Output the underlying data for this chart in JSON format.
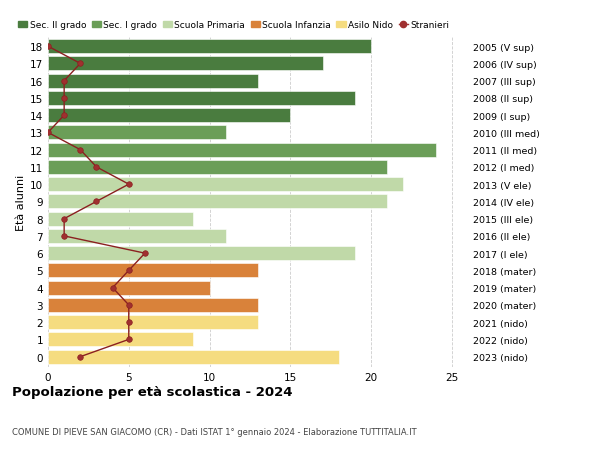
{
  "ages": [
    18,
    17,
    16,
    15,
    14,
    13,
    12,
    11,
    10,
    9,
    8,
    7,
    6,
    5,
    4,
    3,
    2,
    1,
    0
  ],
  "bar_values": [
    20,
    17,
    13,
    19,
    15,
    11,
    24,
    21,
    22,
    21,
    9,
    11,
    19,
    13,
    10,
    13,
    13,
    9,
    18
  ],
  "bar_colors": [
    "#4a7c3f",
    "#4a7c3f",
    "#4a7c3f",
    "#4a7c3f",
    "#4a7c3f",
    "#6b9e58",
    "#6b9e58",
    "#6b9e58",
    "#c0d9a8",
    "#c0d9a8",
    "#c0d9a8",
    "#c0d9a8",
    "#c0d9a8",
    "#d9823a",
    "#d9823a",
    "#d9823a",
    "#f5dc80",
    "#f5dc80",
    "#f5dc80"
  ],
  "stranieri": [
    0,
    2,
    1,
    1,
    1,
    0,
    2,
    3,
    5,
    3,
    1,
    1,
    6,
    5,
    4,
    5,
    5,
    5,
    2
  ],
  "right_labels": [
    "2005 (V sup)",
    "2006 (IV sup)",
    "2007 (III sup)",
    "2008 (II sup)",
    "2009 (I sup)",
    "2010 (III med)",
    "2011 (II med)",
    "2012 (I med)",
    "2013 (V ele)",
    "2014 (IV ele)",
    "2015 (III ele)",
    "2016 (II ele)",
    "2017 (I ele)",
    "2018 (mater)",
    "2019 (mater)",
    "2020 (mater)",
    "2021 (nido)",
    "2022 (nido)",
    "2023 (nido)"
  ],
  "legend_labels": [
    "Sec. II grado",
    "Sec. I grado",
    "Scuola Primaria",
    "Scuola Infanzia",
    "Asilo Nido",
    "Stranieri"
  ],
  "legend_colors": [
    "#4a7c3f",
    "#6b9e58",
    "#c0d9a8",
    "#d9823a",
    "#f5dc80",
    "#a03030"
  ],
  "ylabel_left": "Età alunni",
  "title": "Popolazione per età scolastica - 2024",
  "subtitle": "COMUNE DI PIEVE SAN GIACOMO (CR) - Dati ISTAT 1° gennaio 2024 - Elaborazione TUTTITALIA.IT",
  "xlim": [
    0,
    26
  ],
  "background_color": "#ffffff",
  "bar_height": 0.82,
  "grid_color": "#cccccc",
  "xticks": [
    0,
    5,
    10,
    15,
    20,
    25
  ]
}
